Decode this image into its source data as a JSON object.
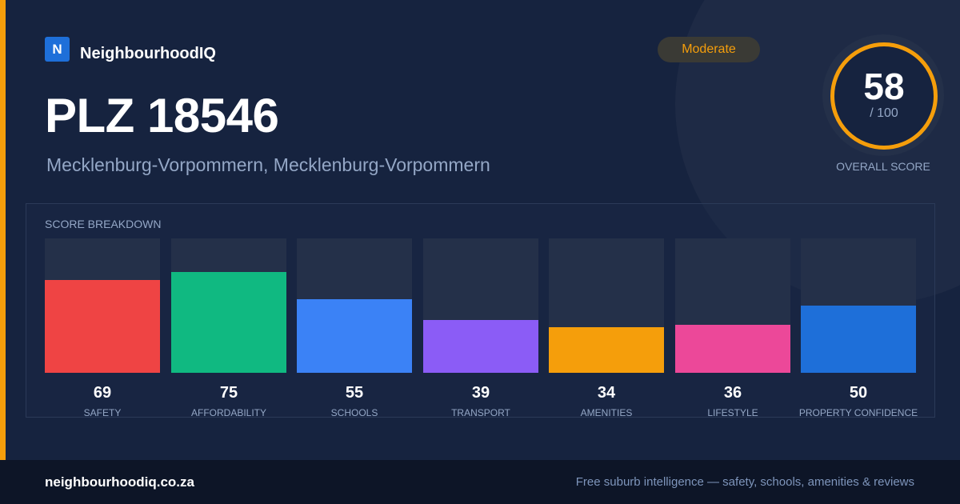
{
  "brand": {
    "logo_letter": "N",
    "name": "NeighbourhoodIQ"
  },
  "header": {
    "title": "PLZ 18546",
    "subtitle": "Mecklenburg-Vorpommern, Mecklenburg-Vorpommern"
  },
  "status": {
    "label": "Moderate",
    "color": "#f59e0b"
  },
  "overall": {
    "score": "58",
    "max": "/ 100",
    "caption": "OVERALL SCORE"
  },
  "breakdown": {
    "heading": "SCORE BREAKDOWN",
    "max": 100,
    "items": [
      {
        "label": "SAFETY",
        "value": 69,
        "color": "#ef4444"
      },
      {
        "label": "AFFORDABILITY",
        "value": 75,
        "color": "#10b981"
      },
      {
        "label": "SCHOOLS",
        "value": 55,
        "color": "#3b82f6"
      },
      {
        "label": "TRANSPORT",
        "value": 39,
        "color": "#8b5cf6"
      },
      {
        "label": "AMENITIES",
        "value": 34,
        "color": "#f59e0b"
      },
      {
        "label": "LIFESTYLE",
        "value": 36,
        "color": "#ec4899"
      },
      {
        "label": "PROPERTY CONFIDENCE",
        "value": 50,
        "color": "#1e6fd9"
      }
    ]
  },
  "footer": {
    "domain": "neighbourhoodiq.co.za",
    "tagline": "Free suburb intelligence — safety, schools, amenities & reviews"
  }
}
